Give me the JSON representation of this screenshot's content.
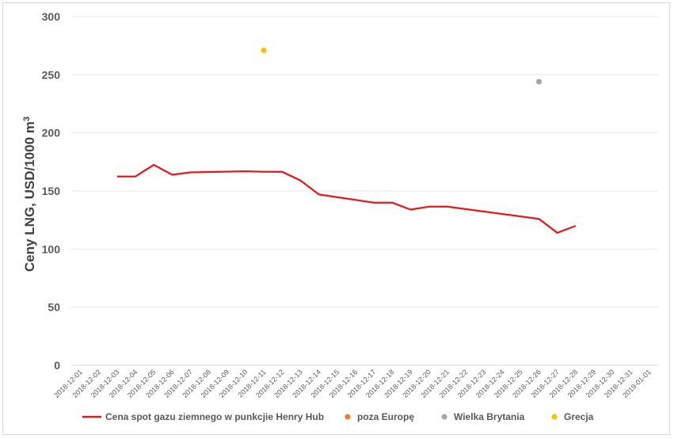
{
  "chart_data": {
    "type": "line",
    "ylabel": "Ceny LNG, USD/1000 m",
    "ylabel_sup": "3",
    "ylim": [
      0,
      300
    ],
    "yticks": [
      "0",
      "50",
      "100",
      "150",
      "200",
      "250",
      "300"
    ],
    "grid": "horizontal",
    "legend_position": "bottom",
    "x": [
      "2018-12-01",
      "2018-12-02",
      "2018-12-03",
      "2018-12-04",
      "2018-12-05",
      "2018-12-06",
      "2018-12-07",
      "2018-12-08",
      "2018-12-09",
      "2018-12-10",
      "2018-12-11",
      "2018-12-12",
      "2018-12-13",
      "2018-12-14",
      "2018-12-15",
      "2018-12-16",
      "2018-12-17",
      "2018-12-18",
      "2018-12-19",
      "2018-12-20",
      "2018-12-21",
      "2018-12-22",
      "2018-12-23",
      "2018-12-24",
      "2018-12-25",
      "2018-12-26",
      "2018-12-27",
      "2018-12-28",
      "2018-12-29",
      "2018-12-30",
      "2018-12-31",
      "2019-01-01"
    ],
    "series": [
      {
        "name": "Cena spot gazu ziemnego w punkcjie Henry Hub",
        "kind": "line",
        "color": "#e31a1c",
        "points": [
          [
            "2018-12-03",
            162.5
          ],
          [
            "2018-12-04",
            162.5
          ],
          [
            "2018-12-05",
            172.5
          ],
          [
            "2018-12-06",
            164
          ],
          [
            "2018-12-07",
            166
          ],
          [
            "2018-12-10",
            167
          ],
          [
            "2018-12-11",
            166.5
          ],
          [
            "2018-12-12",
            166.5
          ],
          [
            "2018-12-13",
            159
          ],
          [
            "2018-12-14",
            147
          ],
          [
            "2018-12-17",
            140
          ],
          [
            "2018-12-18",
            140
          ],
          [
            "2018-12-19",
            134
          ],
          [
            "2018-12-20",
            136.5
          ],
          [
            "2018-12-21",
            136.5
          ],
          [
            "2018-12-26",
            126
          ],
          [
            "2018-12-27",
            114
          ],
          [
            "2018-12-28",
            120
          ]
        ]
      },
      {
        "name": "poza Europę",
        "kind": "scatter",
        "color": "#ed7d31",
        "points": []
      },
      {
        "name": "Wielka Brytania",
        "kind": "scatter",
        "color": "#a5a5a5",
        "points": [
          [
            "2018-12-26",
            244
          ]
        ]
      },
      {
        "name": "Grecja",
        "kind": "scatter",
        "color": "#ffc000",
        "points": [
          [
            "2018-12-11",
            271
          ]
        ]
      }
    ]
  }
}
